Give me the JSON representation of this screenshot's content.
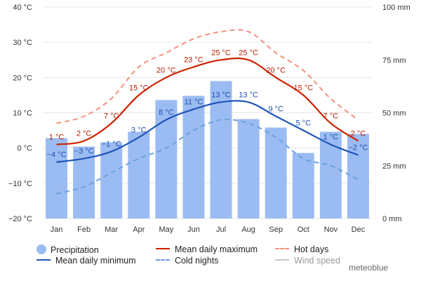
{
  "chart_data": {
    "type": "bar+line",
    "categories": [
      "Jan",
      "Feb",
      "Mar",
      "Apr",
      "May",
      "Jun",
      "Jul",
      "Aug",
      "Sep",
      "Oct",
      "Nov",
      "Dec"
    ],
    "temperature_axis": {
      "ticks": [
        -20,
        -10,
        0,
        10,
        20,
        30,
        40
      ],
      "tick_labels": [
        "−20 °C",
        "−10 °C",
        "0 °C",
        "10 °C",
        "20 °C",
        "30 °C",
        "40 °C"
      ],
      "range": [
        -20,
        40
      ]
    },
    "precipitation_axis": {
      "ticks": [
        0,
        25,
        50,
        75,
        100
      ],
      "tick_labels": [
        "0 mm",
        "25 mm",
        "50 mm",
        "75 mm",
        "100 mm"
      ],
      "range": [
        0,
        100
      ]
    },
    "series": [
      {
        "name": "Precipitation",
        "kind": "bar",
        "axis": "precipitation",
        "values": [
          38,
          34,
          36,
          41,
          56,
          58,
          65,
          47,
          43,
          31,
          41,
          40
        ]
      },
      {
        "name": "Mean daily maximum",
        "kind": "line",
        "axis": "temperature",
        "color": "#cc2200",
        "values": [
          1,
          2,
          7,
          15,
          20,
          23,
          25,
          25,
          20,
          15,
          7,
          2
        ],
        "labels": [
          "1 °C",
          "2 °C",
          "7 °C",
          "15 °C",
          "20 °C",
          "23 °C",
          "25 °C",
          "25 °C",
          "20 °C",
          "15 °C",
          "7 °C",
          "2 °C"
        ]
      },
      {
        "name": "Hot days",
        "kind": "dashed-line",
        "axis": "temperature",
        "color": "#f4907a",
        "values": [
          7,
          9,
          14,
          23,
          27,
          31,
          33,
          33,
          27,
          22,
          14,
          8
        ]
      },
      {
        "name": "Mean daily minimum",
        "kind": "line",
        "axis": "temperature",
        "color": "#1f55b8",
        "values": [
          -4,
          -3,
          -1,
          3,
          8,
          11,
          13,
          13,
          9,
          5,
          1,
          -2
        ],
        "labels": [
          "−4 °C",
          "−3 °C",
          "−1 °C",
          "3 °C",
          "8 °C",
          "11 °C",
          "13 °C",
          "13 °C",
          "9 °C",
          "5 °C",
          "1 °C",
          "−2 °C"
        ]
      },
      {
        "name": "Cold nights",
        "kind": "dashed-line",
        "axis": "temperature",
        "color": "#6aa0dc",
        "values": [
          -13,
          -11,
          -7,
          -3,
          0,
          5,
          8,
          7,
          3,
          -3,
          -5,
          -9
        ]
      }
    ],
    "legend": [
      {
        "name": "Precipitation",
        "swatch": "dot",
        "color": "#9bbcf2"
      },
      {
        "name": "Mean daily maximum",
        "swatch": "line",
        "color": "#cc2200"
      },
      {
        "name": "Hot days",
        "swatch": "dash",
        "color": "#f4907a"
      },
      {
        "name": "Mean daily minimum",
        "swatch": "line",
        "color": "#1f55b8"
      },
      {
        "name": "Cold nights",
        "swatch": "dash",
        "color": "#6aa0dc"
      },
      {
        "name": "Wind speed",
        "swatch": "line",
        "color": "#c8c8c8",
        "faded": true
      }
    ],
    "legend_position": "bottom",
    "grid": true,
    "colors": {
      "bar": "#9bbcf2",
      "max_label": "#b81c00",
      "min_label": "#1f4fb0"
    }
  },
  "brand": "meteoblue"
}
